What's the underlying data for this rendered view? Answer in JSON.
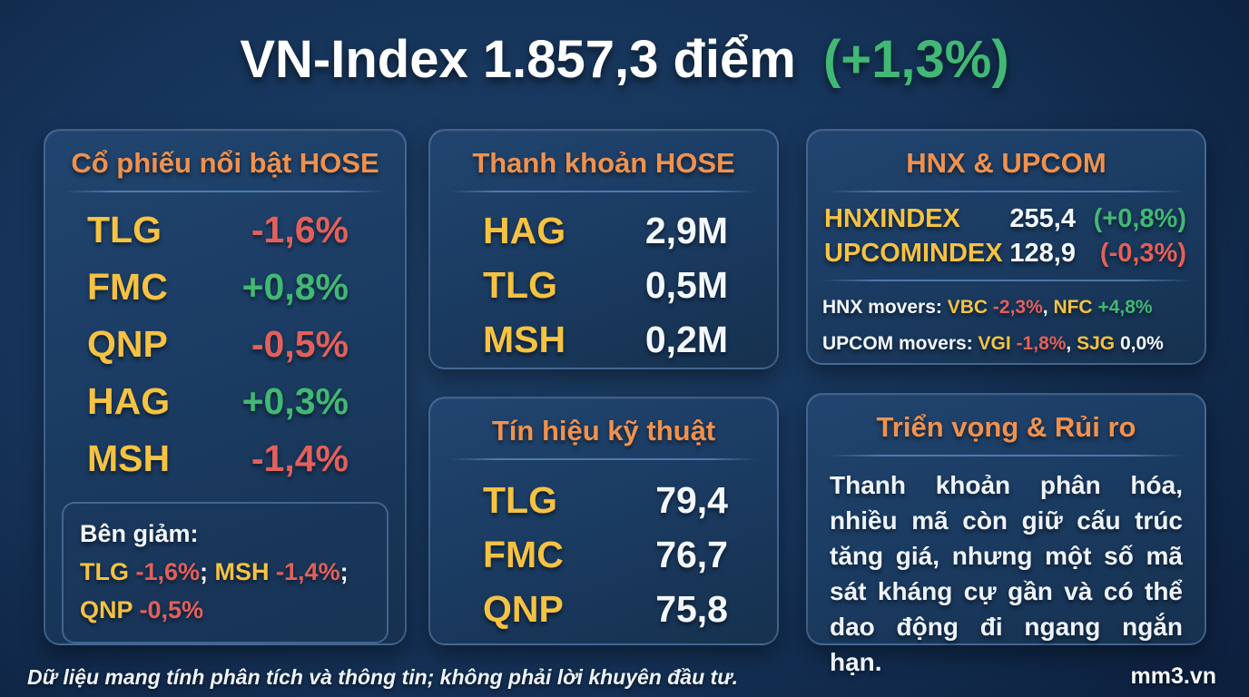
{
  "title": {
    "main": "VN-Index 1.857,3 điểm",
    "change": "(+1,3%)"
  },
  "colors": {
    "accent_orange": "#f0914e",
    "ticker_yellow": "#f5c242",
    "down_red": "#e3605a",
    "up_green": "#41b873",
    "text_white": "#f3f7fc",
    "card_border": "#5d83b4"
  },
  "cards": {
    "hose_highlights": {
      "header": "Cổ phiếu nổi bật HOSE",
      "rows": [
        {
          "ticker": "TLG",
          "value": "-1,6%",
          "direction": "down"
        },
        {
          "ticker": "FMC",
          "value": "+0,8%",
          "direction": "up"
        },
        {
          "ticker": "QNP",
          "value": "-0,5%",
          "direction": "down"
        },
        {
          "ticker": "HAG",
          "value": "+0,3%",
          "direction": "up"
        },
        {
          "ticker": "MSH",
          "value": "-1,4%",
          "direction": "down"
        }
      ],
      "decliners": {
        "label": "Bên giảm:",
        "lines": [
          [
            {
              "text": "TLG ",
              "role": "ticker"
            },
            {
              "text": "-1,6%",
              "role": "down"
            },
            {
              "text": "; ",
              "role": "plain"
            },
            {
              "text": "MSH ",
              "role": "ticker"
            },
            {
              "text": "-1,4%",
              "role": "down"
            },
            {
              "text": ";",
              "role": "plain"
            }
          ],
          [
            {
              "text": "QNP ",
              "role": "ticker"
            },
            {
              "text": "-0,5%",
              "role": "down"
            }
          ]
        ]
      }
    },
    "liquidity": {
      "header": "Thanh khoản HOSE",
      "rows": [
        {
          "ticker": "HAG",
          "value": "2,9M"
        },
        {
          "ticker": "TLG",
          "value": "0,5M"
        },
        {
          "ticker": "MSH",
          "value": "0,2M"
        }
      ]
    },
    "technical": {
      "header": "Tín hiệu kỹ thuật",
      "rows": [
        {
          "ticker": "TLG",
          "value": "79,4"
        },
        {
          "ticker": "FMC",
          "value": "76,7"
        },
        {
          "ticker": "QNP",
          "value": "75,8"
        }
      ]
    },
    "hnx_upcom": {
      "header": "HNX & UPCOM",
      "indices": [
        {
          "name": "HNXINDEX",
          "value": "255,4",
          "change": "(+0,8%)",
          "direction": "up"
        },
        {
          "name": "UPCOMINDEX",
          "value": "128,9",
          "change": "(-0,3%)",
          "direction": "down"
        }
      ],
      "movers": [
        {
          "label": "HNX movers: ",
          "segments": [
            {
              "text": "VBC ",
              "role": "ticker"
            },
            {
              "text": "-2,3%",
              "role": "down"
            },
            {
              "text": ", ",
              "role": "plain"
            },
            {
              "text": "NFC ",
              "role": "ticker"
            },
            {
              "text": "+4,8%",
              "role": "up"
            }
          ]
        },
        {
          "label": "UPCOM movers: ",
          "segments": [
            {
              "text": "VGI ",
              "role": "ticker"
            },
            {
              "text": "-1,8%",
              "role": "down"
            },
            {
              "text": ", ",
              "role": "plain"
            },
            {
              "text": "SJG ",
              "role": "ticker"
            },
            {
              "text": "0,0%",
              "role": "flat"
            }
          ]
        }
      ]
    },
    "outlook": {
      "header": "Triển vọng & Rủi ro",
      "body": "Thanh khoản phân hóa, nhiều mã còn giữ cấu trúc tăng giá, nhưng một số mã sát kháng cự gần và có thể dao động đi ngang ngắn hạn."
    }
  },
  "footer": {
    "disclaimer": "Dữ liệu mang tính phân tích và thông tin; không phải lời khuyên đầu tư.",
    "brand": "mm3.vn"
  }
}
